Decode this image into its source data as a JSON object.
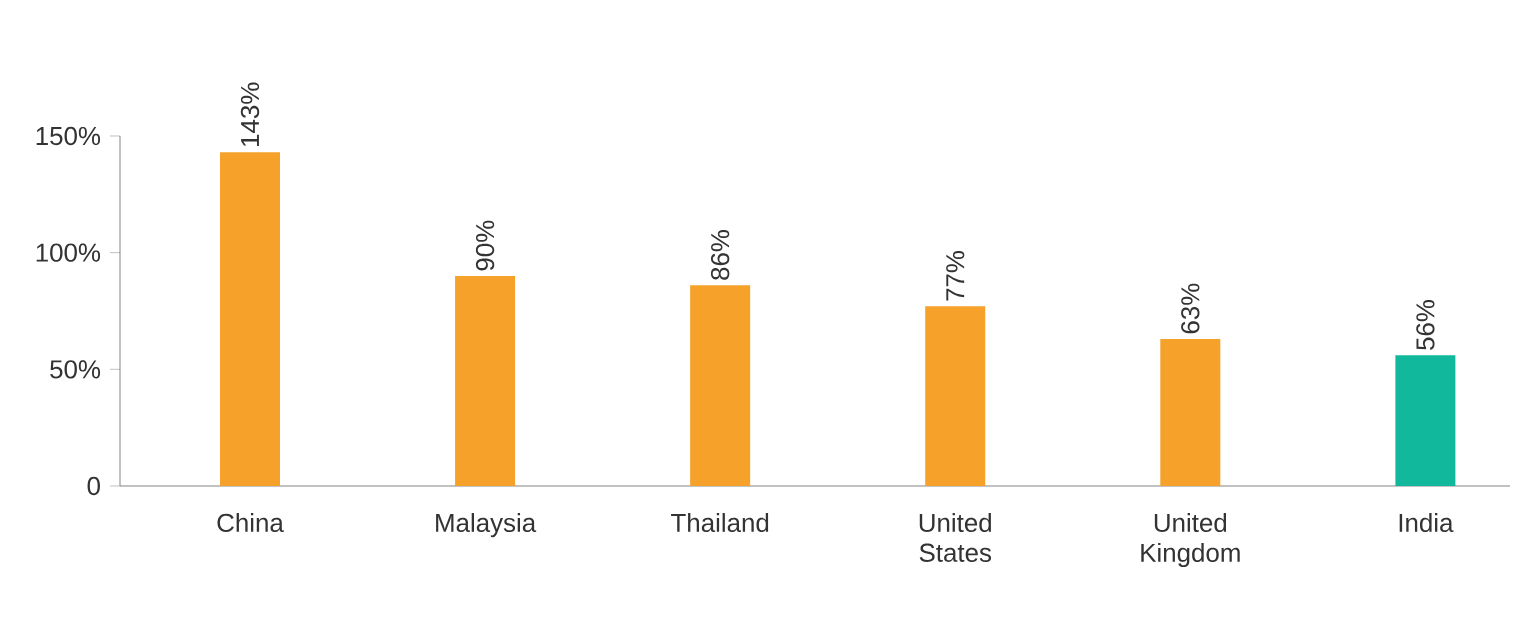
{
  "chart_data": {
    "type": "bar",
    "categories": [
      "China",
      "Malaysia",
      "Thailand",
      "United States",
      "United Kingdom",
      "India"
    ],
    "values": [
      143,
      90,
      86,
      77,
      63,
      56
    ],
    "colors": [
      "#f5a12a",
      "#f5a12a",
      "#f5a12a",
      "#f5a12a",
      "#f5a12a",
      "#12b89c"
    ],
    "value_labels": [
      "143%",
      "90%",
      "86%",
      "77%",
      "63%",
      "56%"
    ],
    "ylim": [
      0,
      150
    ],
    "yticks": [
      0,
      {
        "value": 50,
        "label": "50%"
      },
      {
        "value": 100,
        "label": "100%"
      },
      {
        "value": 150,
        "label": "150%"
      }
    ],
    "grid": false
  }
}
